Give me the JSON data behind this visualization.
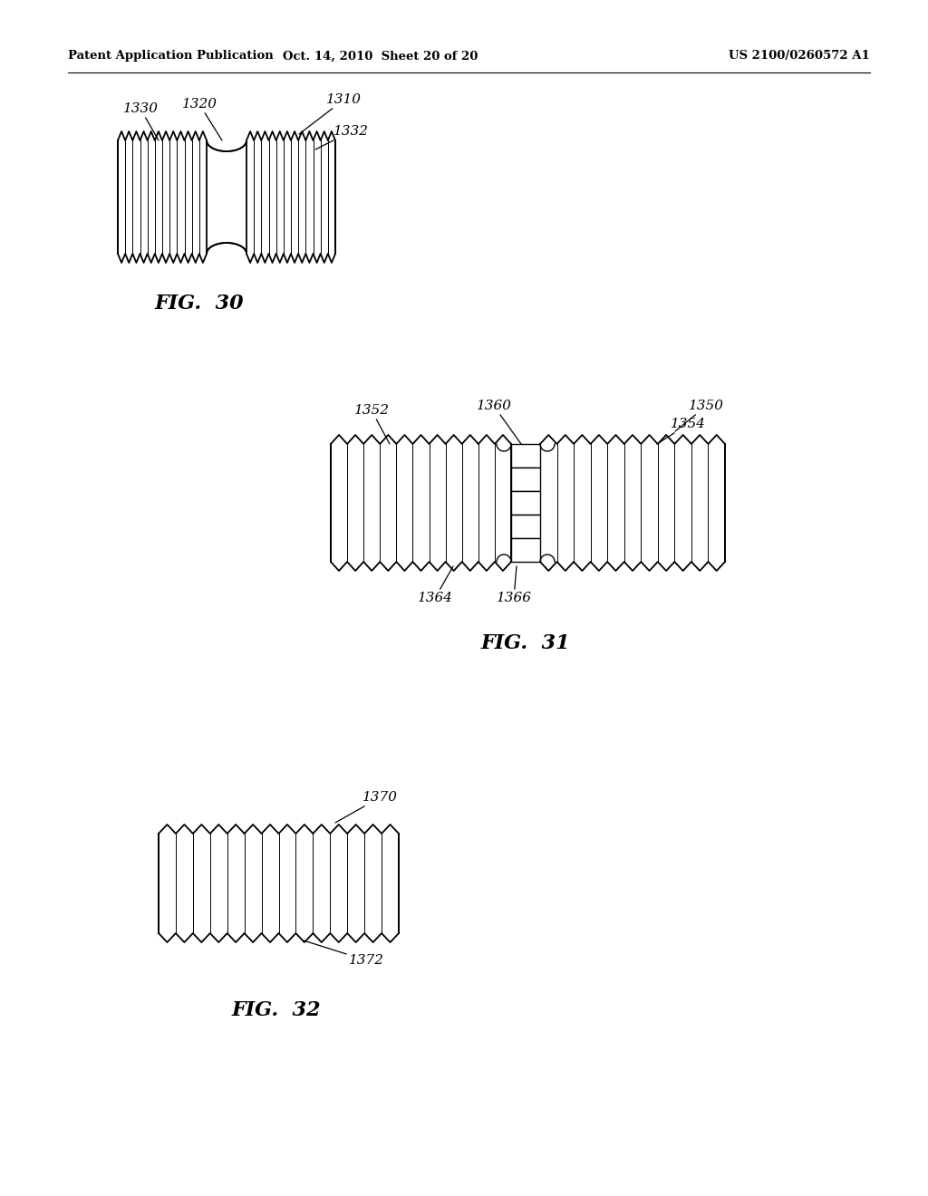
{
  "bg_color": "#ffffff",
  "header_left": "Patent Application Publication",
  "header_center": "Oct. 14, 2010  Sheet 20 of 20",
  "header_right": "US 2100/0260572 A1",
  "fig30_label": "FIG.  30",
  "fig31_label": "FIG.  31",
  "fig32_label": "FIG.  32"
}
